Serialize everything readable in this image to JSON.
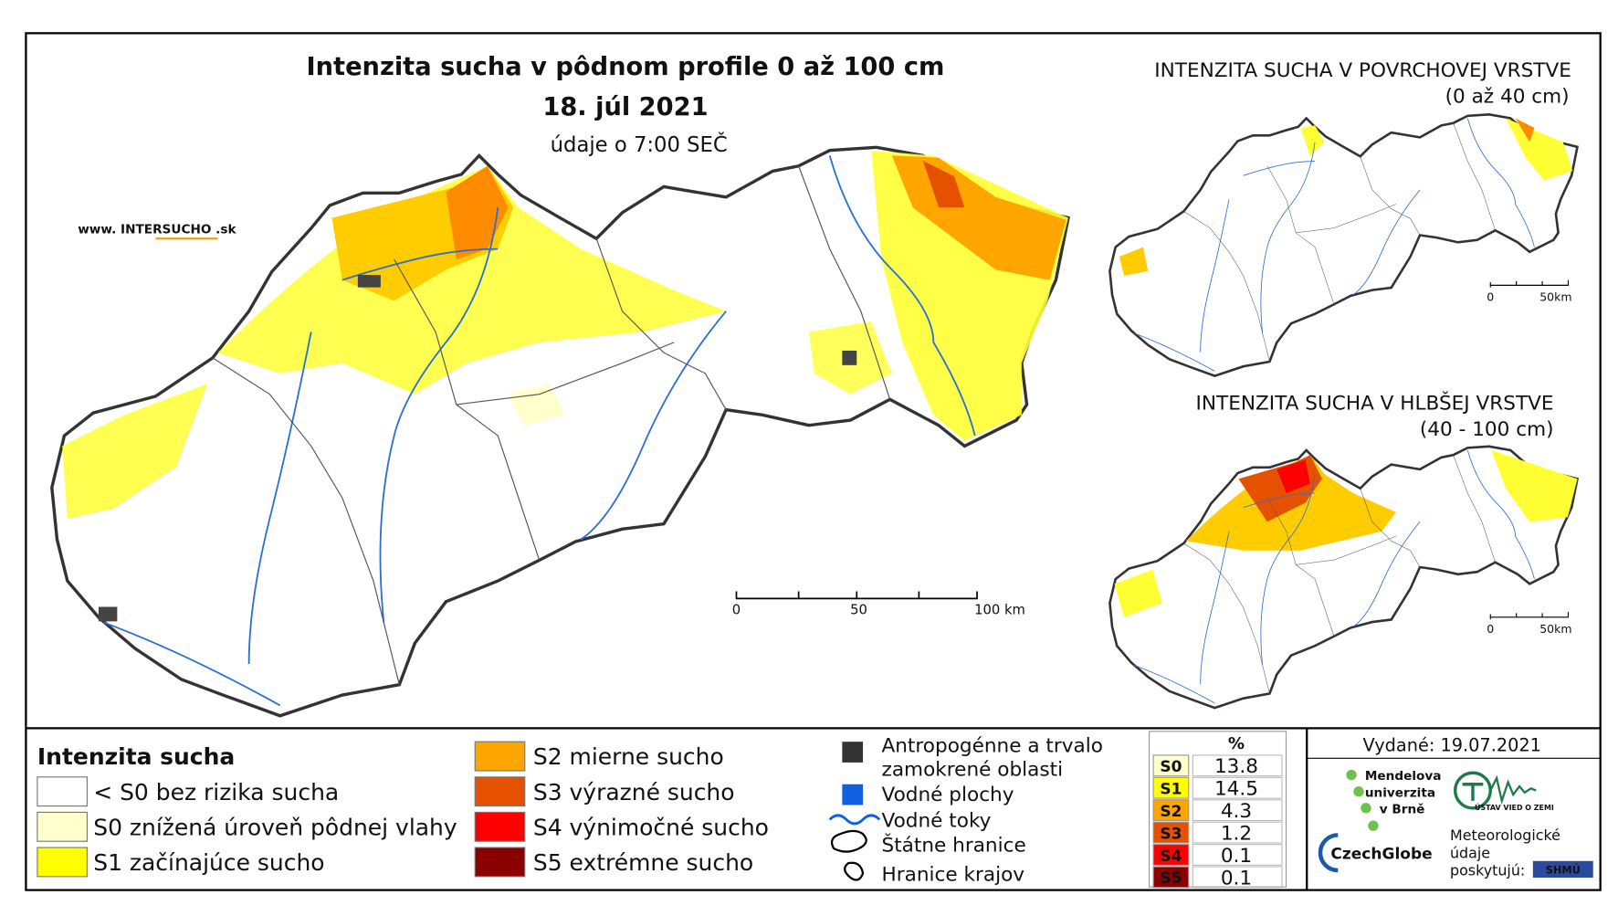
{
  "main_map": {
    "title": "Intenzita sucha v pôdnom profile 0 až 100 cm",
    "date": "18. júl 2021",
    "time_note": "údaje o 7:00 SEČ",
    "website": "www. INTERSUCHO .sk",
    "scale": [
      0,
      50,
      "100 km"
    ]
  },
  "inset_surface": {
    "title": "INTENZITA SUCHA V POVRCHOVEJ VRSTVE",
    "subtitle": "(0 až 40 cm)",
    "scale": [
      0,
      "50km"
    ]
  },
  "inset_deep": {
    "title": "INTENZITA SUCHA V HLBŠEJ VRSTVE",
    "subtitle": "(40 - 100 cm)",
    "scale": [
      0,
      "50km"
    ]
  },
  "legend": {
    "title": "Intenzita sucha",
    "items": [
      {
        "label": "< S0 bez rizika sucha",
        "color": "#ffffff"
      },
      {
        "label": "S0 znížená úroveň pôdnej vlahy",
        "color": "#ffffcc"
      },
      {
        "label": "S1 začínajúce sucho",
        "color": "#ffff00"
      },
      {
        "label": "S2 mierne sucho",
        "color": "#ffa500"
      },
      {
        "label": "S3 výrazné sucho",
        "color": "#e65100"
      },
      {
        "label": "S4 výnimočné sucho",
        "color": "#ff0000"
      },
      {
        "label": "S5 extrémne sucho",
        "color": "#8b0000"
      }
    ]
  },
  "layers": {
    "items": [
      {
        "label_lines": [
          "Antropogénne a trvalo",
          "zamokrené oblasti"
        ]
      },
      {
        "label_lines": [
          "Vodné plochy"
        ]
      },
      {
        "label_lines": [
          "Vodné toky"
        ]
      },
      {
        "label_lines": [
          "Štátne hranice"
        ]
      },
      {
        "label_lines": [
          "Hranice krajov"
        ]
      }
    ]
  },
  "table": {
    "header": "%",
    "rows": [
      {
        "class": "S0",
        "color": "#ffffcc",
        "percent": 13.8
      },
      {
        "class": "S1",
        "color": "#ffff00",
        "percent": 14.5
      },
      {
        "class": "S2",
        "color": "#ffa500",
        "percent": 4.3
      },
      {
        "class": "S3",
        "color": "#e65100",
        "percent": 1.2
      },
      {
        "class": "S4",
        "color": "#ff0000",
        "percent": 0.1
      },
      {
        "class": "S5",
        "color": "#8b0000",
        "percent": 0.1
      }
    ]
  },
  "footer": {
    "issued": "Vydané: 19.07.2021",
    "mendel_lines": [
      "Mendelova",
      "univerzita",
      "v Brně"
    ],
    "ustav": "ÚSTAV VIED O ZEMI",
    "czechglobe": "CzechGlobe",
    "provider_lines": [
      "Meteorologické",
      "údaje",
      "poskytujú:"
    ],
    "provider_logo": "SHMÚ"
  }
}
